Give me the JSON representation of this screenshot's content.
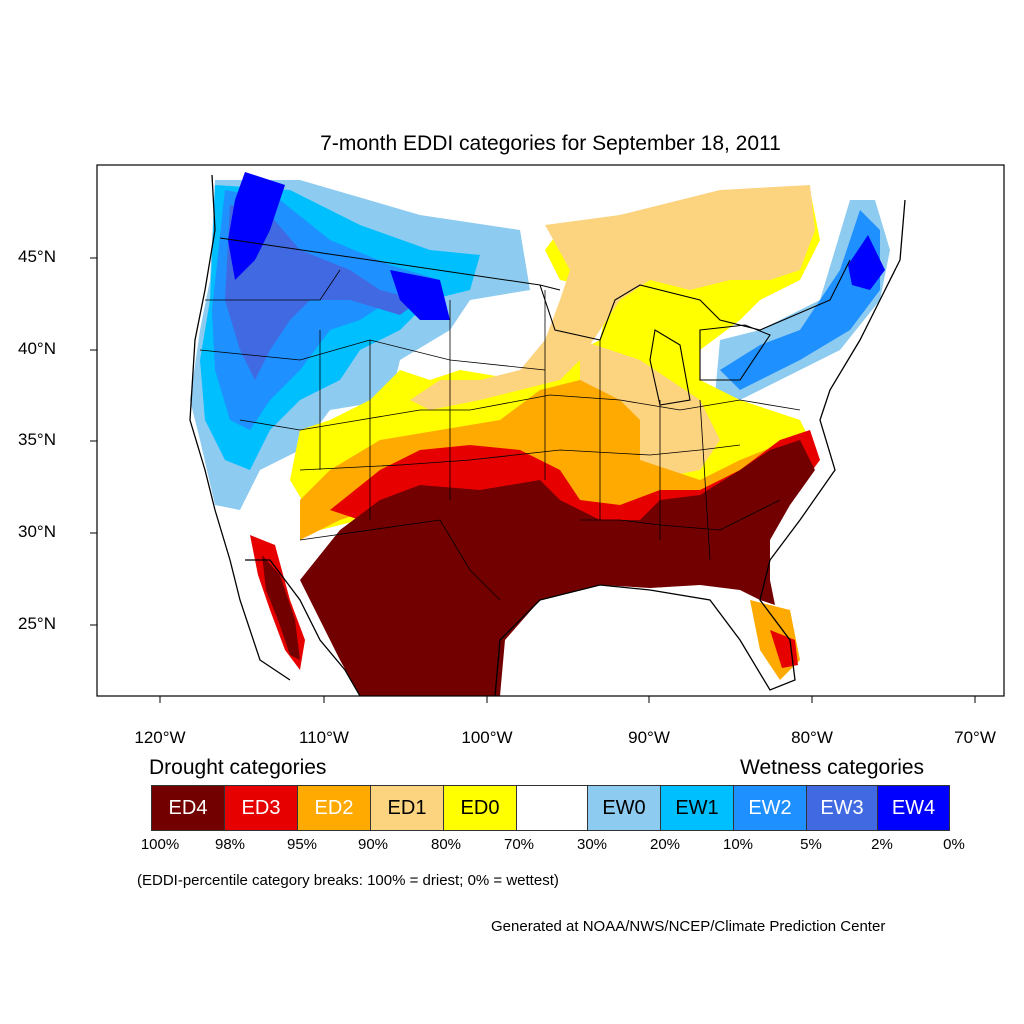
{
  "title": "7-month EDDI categories for September 18, 2011",
  "map": {
    "lat_labels": [
      "45°N",
      "40°N",
      "35°N",
      "30°N",
      "25°N"
    ],
    "lon_labels": [
      "120°W",
      "110°W",
      "100°W",
      "90°W",
      "80°W",
      "70°W"
    ]
  },
  "legend": {
    "drought_heading": "Drought categories",
    "wetness_heading": "Wetness categories",
    "categories": [
      {
        "label": "ED4",
        "color": "#730000",
        "text_color": "#ffffff"
      },
      {
        "label": "ED3",
        "color": "#e60000",
        "text_color": "#ffffff"
      },
      {
        "label": "ED2",
        "color": "#ffaa00",
        "text_color": "#ffffff"
      },
      {
        "label": "ED1",
        "color": "#fcd37f",
        "text_color": "#000000"
      },
      {
        "label": "ED0",
        "color": "#ffff00",
        "text_color": "#000000"
      },
      {
        "label": "",
        "color": "#ffffff",
        "text_color": "#000000"
      },
      {
        "label": "EW0",
        "color": "#8ecbf0",
        "text_color": "#000000"
      },
      {
        "label": "EW1",
        "color": "#00bfff",
        "text_color": "#000000"
      },
      {
        "label": "EW2",
        "color": "#1e90ff",
        "text_color": "#ffffff"
      },
      {
        "label": "EW3",
        "color": "#4169e1",
        "text_color": "#ffffff"
      },
      {
        "label": "EW4",
        "color": "#0000ff",
        "text_color": "#ffffff"
      }
    ],
    "breaks": [
      "100%",
      "98%",
      "95%",
      "90%",
      "80%",
      "70%",
      "30%",
      "20%",
      "10%",
      "5%",
      "2%",
      "0%"
    ]
  },
  "note": "(EDDI-percentile category breaks: 100% = driest; 0% = wettest)",
  "credit": "Generated at NOAA/NWS/NCEP/Climate Prediction Center"
}
